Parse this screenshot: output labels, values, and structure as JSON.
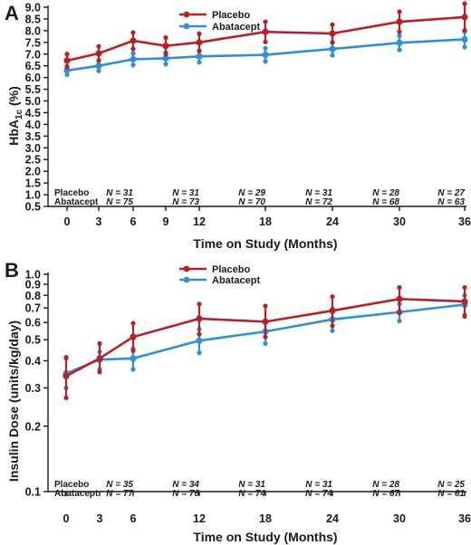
{
  "chart_data": [
    {
      "type": "line",
      "panel_label": "A",
      "xlabel": "Time on Study (Months)",
      "ylabel": "HbA1c (%)",
      "ylabel_main": "HbA",
      "ylabel_sub": "1c",
      "ylabel_unit": " (%)",
      "ylim": [
        0.5,
        9.0
      ],
      "yscale": "linear",
      "x_ticks": [
        0,
        3,
        6,
        9,
        12,
        18,
        24,
        30,
        36
      ],
      "y_ticks": [
        "0.5",
        "1.0",
        "1.5",
        "2.0",
        "2.5",
        "3.0",
        "3.5",
        "4.0",
        "4.5",
        "5.0",
        "5.5",
        "6.0",
        "6.5",
        "7.0",
        "7.5",
        "8.0",
        "8.5",
        "9.0"
      ],
      "legend_position": "top-center",
      "series": [
        {
          "name": "Placebo",
          "color": "#b52226",
          "x": [
            0,
            3,
            6,
            9,
            12,
            18,
            24,
            30,
            36
          ],
          "y": [
            6.72,
            7.03,
            7.57,
            7.35,
            7.5,
            7.95,
            7.88,
            8.38,
            8.58
          ],
          "err": [
            0.28,
            0.3,
            0.35,
            0.35,
            0.37,
            0.43,
            0.38,
            0.43,
            0.57
          ]
        },
        {
          "name": "Abatacept",
          "color": "#2f8fd8",
          "x": [
            0,
            3,
            6,
            9,
            12,
            18,
            24,
            30,
            36
          ],
          "y": [
            6.3,
            6.5,
            6.78,
            6.82,
            6.9,
            6.97,
            7.22,
            7.48,
            7.63
          ],
          "err": [
            0.18,
            0.22,
            0.25,
            0.25,
            0.25,
            0.28,
            0.27,
            0.3,
            0.33
          ]
        }
      ],
      "n_table": {
        "row_labels": [
          "Placebo",
          "Abatacept"
        ],
        "x": [
          6,
          12,
          18,
          24,
          30,
          36
        ],
        "placebo": [
          "N = 31",
          "N = 31",
          "N = 29",
          "N = 31",
          "N = 28",
          "N = 27"
        ],
        "abatacept": [
          "N = 75",
          "N = 73",
          "N = 70",
          "N = 72",
          "N = 68",
          "N = 63"
        ]
      }
    },
    {
      "type": "line",
      "panel_label": "B",
      "xlabel": "Time on Study (Months)",
      "ylabel": "Insulin Dose (units/kg/day)",
      "ylim": [
        0.1,
        1.0
      ],
      "yscale": "log",
      "x_ticks": [
        0,
        3,
        6,
        12,
        18,
        24,
        30,
        36
      ],
      "y_ticks": [
        "0.1",
        "0.2",
        "0.3",
        "0.4",
        "0.5",
        "0.6",
        "0.7",
        "0.8",
        "0.9",
        "1.0"
      ],
      "legend_position": "top-center",
      "series": [
        {
          "name": "Placebo",
          "color": "#b52226",
          "x": [
            0,
            3,
            6,
            12,
            18,
            24,
            30,
            36
          ],
          "y": [
            0.34,
            0.41,
            0.515,
            0.625,
            0.605,
            0.68,
            0.77,
            0.75
          ],
          "err_low": [
            0.27,
            0.355,
            0.445,
            0.53,
            0.515,
            0.58,
            0.665,
            0.64
          ],
          "err_high": [
            0.415,
            0.48,
            0.595,
            0.73,
            0.715,
            0.79,
            0.87,
            0.87
          ]
        },
        {
          "name": "Abatacept",
          "color": "#2f8fd8",
          "x": [
            0,
            3,
            6,
            12,
            18,
            24,
            30,
            36
          ],
          "y": [
            0.35,
            0.405,
            0.41,
            0.495,
            0.545,
            0.62,
            0.67,
            0.725
          ],
          "err_low": [
            0.3,
            0.365,
            0.365,
            0.435,
            0.48,
            0.55,
            0.61,
            0.65
          ],
          "err_high": [
            0.41,
            0.44,
            0.455,
            0.56,
            0.61,
            0.695,
            0.73,
            0.8
          ]
        }
      ],
      "n_table": {
        "row_labels": [
          "Placebo",
          "Abatacept"
        ],
        "x": [
          6,
          12,
          18,
          24,
          30,
          36
        ],
        "placebo": [
          "N = 35",
          "N = 34",
          "N = 31",
          "N = 31",
          "N = 28",
          "N = 25"
        ],
        "abatacept": [
          "N = 77",
          "N = 76",
          "N = 74",
          "N = 74",
          "N = 67",
          "N = 61"
        ]
      }
    }
  ]
}
